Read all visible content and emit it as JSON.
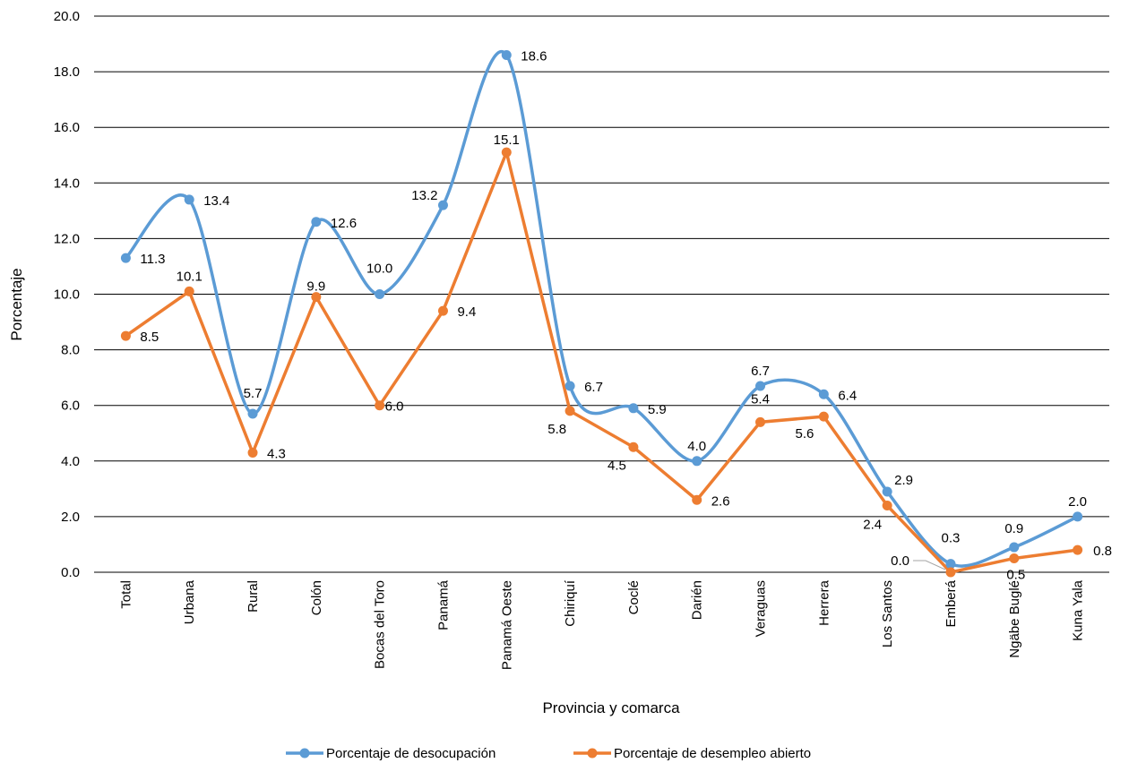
{
  "chart_data": {
    "type": "line",
    "categories": [
      "Total",
      "Urbana",
      "Rural",
      "Colón",
      "Bocas del Toro",
      "Panamá",
      "Panamá Oeste",
      "Chiriquí",
      "Coclé",
      "Darién",
      "Veraguas",
      "Herrera",
      "Los Santos",
      "Emberá",
      "Ngäbe Buglé",
      "Kuna Yala"
    ],
    "series": [
      {
        "name": "Porcentaje de desocupación",
        "color": "#5B9BD5",
        "values": [
          11.3,
          13.4,
          5.7,
          12.6,
          10.0,
          13.2,
          18.6,
          6.7,
          5.9,
          4.0,
          6.7,
          6.4,
          2.9,
          0.3,
          0.9,
          2.0
        ],
        "labels": [
          "11.3",
          "13.4",
          "5.7",
          "12.6",
          "10.0",
          "13.2",
          "18.6",
          "6.7",
          "5.9",
          "4.0",
          "6.7",
          "6.4",
          "2.9",
          "0.3",
          "0.9",
          "2.0"
        ]
      },
      {
        "name": "Porcentaje de desempleo abierto",
        "color": "#ED7D31",
        "values": [
          8.5,
          10.1,
          4.3,
          9.9,
          6.0,
          9.4,
          15.1,
          5.8,
          4.5,
          2.6,
          5.4,
          5.6,
          2.4,
          0.0,
          0.5,
          0.8
        ],
        "labels": [
          "8.5",
          "10.1",
          "4.3",
          "9.9",
          "6.0",
          "9.4",
          "15.1",
          "5.8",
          "4.5",
          "2.6",
          "5.4",
          "5.6",
          "2.4",
          "0.0",
          "0.5",
          "0.8"
        ]
      }
    ],
    "xlabel": "Provincia y comarca",
    "ylabel": "Porcentaje",
    "ylim": [
      0,
      20
    ],
    "yticks": [
      "0.0",
      "2.0",
      "4.0",
      "6.0",
      "8.0",
      "10.0",
      "12.0",
      "14.0",
      "16.0",
      "18.0",
      "20.0"
    ],
    "grid": true,
    "legend_position": "bottom"
  }
}
